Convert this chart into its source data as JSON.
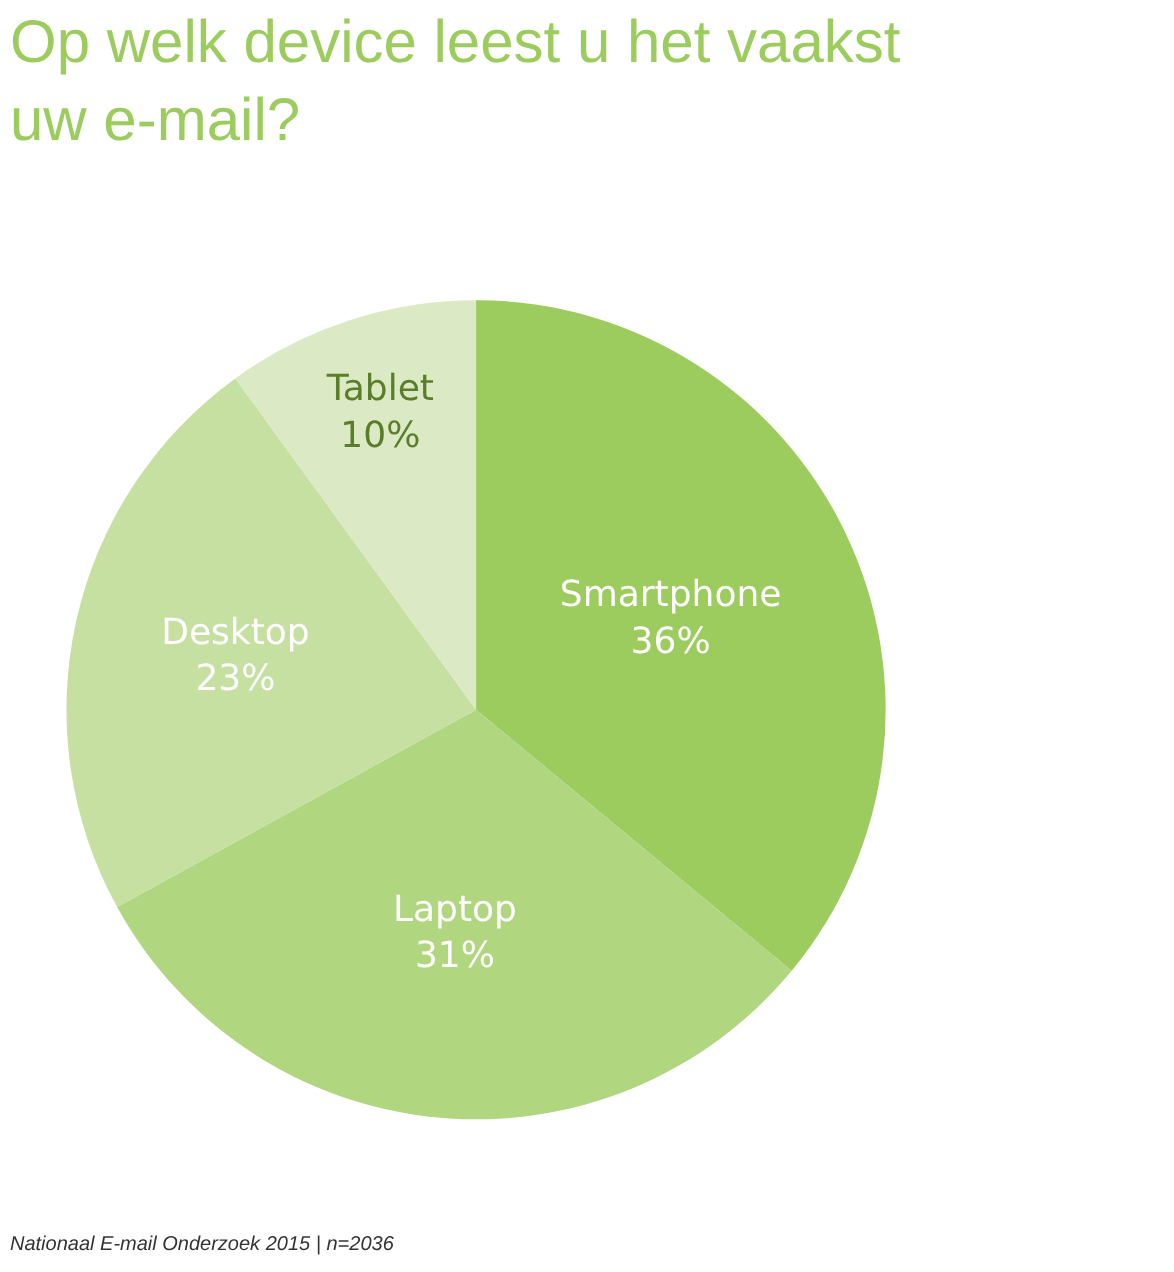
{
  "chart_data": {
    "type": "pie",
    "title": "Op welk device leest u het vaakst uw e-mail?",
    "categories": [
      "Smartphone",
      "Laptop",
      "Desktop",
      "Tablet"
    ],
    "values": [
      36,
      31,
      23,
      10
    ],
    "value_labels": [
      "36%",
      "31%",
      "23%",
      "10%"
    ],
    "colors": [
      "#9ccc5e",
      "#b0d67f",
      "#c5e0a0",
      "#dbeac4"
    ],
    "annotations": [
      "Nationaal E-mail Onderzoek 2015 | n=2036"
    ],
    "legend": false
  }
}
